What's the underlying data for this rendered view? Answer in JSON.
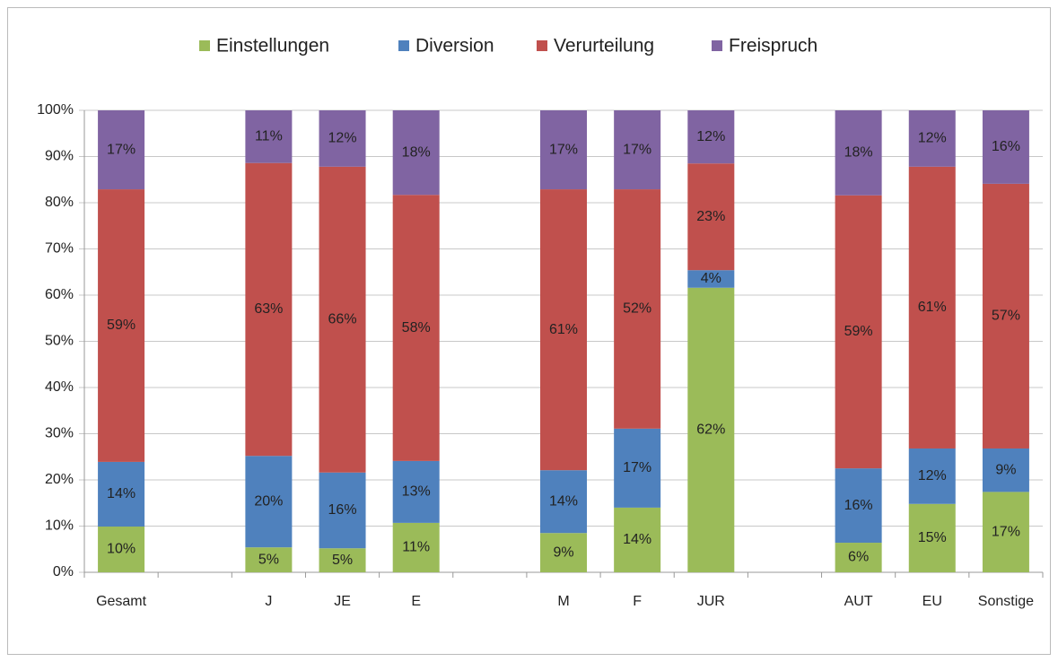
{
  "chart_data": {
    "type": "bar",
    "stacked": true,
    "categories": [
      "Gesamt",
      null,
      "J",
      "JE",
      "E",
      null,
      "M",
      "F",
      "JUR",
      null,
      "AUT",
      "EU",
      "Sonstige"
    ],
    "series": [
      {
        "name": "Einstellungen",
        "color": "#9bbb59",
        "values": [
          9.9,
          null,
          5.4,
          5.2,
          10.7,
          null,
          8.5,
          14.0,
          61.6,
          null,
          6.4,
          14.8,
          17.4
        ],
        "value_labels": [
          "10%",
          null,
          "5%",
          "5%",
          "11%",
          null,
          "9%",
          "14%",
          "62%",
          null,
          "6%",
          "15%",
          "17%"
        ]
      },
      {
        "name": "Diversion",
        "color": "#4f81bd",
        "values": [
          14.0,
          null,
          19.8,
          16.4,
          13.4,
          null,
          13.6,
          17.1,
          3.8,
          null,
          16.1,
          12.0,
          9.4
        ],
        "value_labels": [
          "14%",
          null,
          "20%",
          "16%",
          "13%",
          null,
          "14%",
          "17%",
          "4%",
          null,
          "16%",
          "12%",
          "9%"
        ]
      },
      {
        "name": "Verurteilung",
        "color": "#c0504d",
        "values": [
          59.0,
          null,
          63.4,
          66.2,
          57.6,
          null,
          60.8,
          51.8,
          23.1,
          null,
          59.1,
          61.0,
          57.3
        ],
        "value_labels": [
          "59%",
          null,
          "63%",
          "66%",
          "58%",
          null,
          "61%",
          "52%",
          "23%",
          null,
          "59%",
          "61%",
          "57%"
        ]
      },
      {
        "name": "Freispruch",
        "color": "#8064a2",
        "values": [
          17.1,
          null,
          11.4,
          12.2,
          18.3,
          null,
          17.1,
          17.1,
          11.5,
          null,
          18.4,
          12.2,
          15.9
        ],
        "value_labels": [
          "17%",
          null,
          "11%",
          "12%",
          "18%",
          null,
          "17%",
          "17%",
          "12%",
          null,
          "18%",
          "12%",
          "16%"
        ]
      }
    ],
    "ylim": [
      0,
      100
    ],
    "yticks": [
      {
        "value": 0,
        "label": "0%"
      },
      {
        "value": 10,
        "label": "10%"
      },
      {
        "value": 20,
        "label": "20%"
      },
      {
        "value": 30,
        "label": "30%"
      },
      {
        "value": 40,
        "label": "40%"
      },
      {
        "value": 50,
        "label": "50%"
      },
      {
        "value": 60,
        "label": "60%"
      },
      {
        "value": 70,
        "label": "70%"
      },
      {
        "value": 80,
        "label": "80%"
      },
      {
        "value": 90,
        "label": "90%"
      },
      {
        "value": 100,
        "label": "100%"
      }
    ],
    "grid": true,
    "legend": "top"
  }
}
